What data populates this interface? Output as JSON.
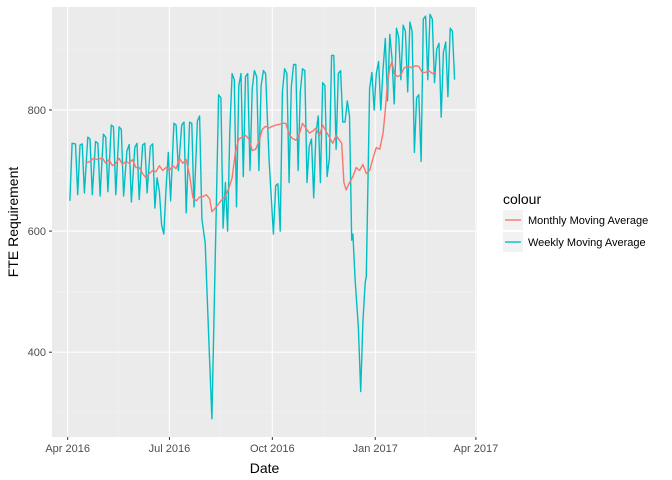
{
  "chart_data": {
    "type": "line",
    "xlabel": "Date",
    "ylabel": "FTE Requirement",
    "x_axis": {
      "type": "date",
      "range": [
        "2016-03-18",
        "2017-04-02"
      ],
      "ticks": [
        {
          "date": "2016-04-01",
          "label": "Apr 2016"
        },
        {
          "date": "2016-07-01",
          "label": "Jul 2016"
        },
        {
          "date": "2016-10-01",
          "label": "Oct 2016"
        },
        {
          "date": "2017-01-01",
          "label": "Jan 2017"
        },
        {
          "date": "2017-04-01",
          "label": "Apr 2017"
        }
      ]
    },
    "y_axis": {
      "range": [
        260,
        970
      ],
      "ticks": [
        400,
        600,
        800
      ]
    },
    "grid": true,
    "legend": {
      "title": "colour",
      "placement": "right",
      "entries": [
        "Monthly Moving Average",
        "Weekly Moving Average"
      ]
    },
    "series": [
      {
        "name": "Weekly Moving Average",
        "color": "#00bfc4",
        "points": [
          [
            "2016-04-03",
            650
          ],
          [
            "2016-04-05",
            745
          ],
          [
            "2016-04-08",
            744
          ],
          [
            "2016-04-10",
            660
          ],
          [
            "2016-04-12",
            742
          ],
          [
            "2016-04-14",
            744
          ],
          [
            "2016-04-16",
            663
          ],
          [
            "2016-04-19",
            755
          ],
          [
            "2016-04-21",
            752
          ],
          [
            "2016-04-23",
            660
          ],
          [
            "2016-04-26",
            748
          ],
          [
            "2016-04-28",
            745
          ],
          [
            "2016-04-30",
            658
          ],
          [
            "2016-05-03",
            760
          ],
          [
            "2016-05-05",
            755
          ],
          [
            "2016-05-07",
            665
          ],
          [
            "2016-05-10",
            775
          ],
          [
            "2016-05-12",
            772
          ],
          [
            "2016-05-14",
            660
          ],
          [
            "2016-05-17",
            772
          ],
          [
            "2016-05-19",
            768
          ],
          [
            "2016-05-21",
            658
          ],
          [
            "2016-05-24",
            732
          ],
          [
            "2016-05-26",
            743
          ],
          [
            "2016-05-28",
            648
          ],
          [
            "2016-05-31",
            738
          ],
          [
            "2016-06-02",
            745
          ],
          [
            "2016-06-04",
            652
          ],
          [
            "2016-06-07",
            742
          ],
          [
            "2016-06-09",
            745
          ],
          [
            "2016-06-11",
            663
          ],
          [
            "2016-06-14",
            740
          ],
          [
            "2016-06-16",
            744
          ],
          [
            "2016-06-18",
            638
          ],
          [
            "2016-06-20",
            688
          ],
          [
            "2016-06-22",
            665
          ],
          [
            "2016-06-24",
            610
          ],
          [
            "2016-06-26",
            595
          ],
          [
            "2016-06-28",
            672
          ],
          [
            "2016-06-30",
            730
          ],
          [
            "2016-07-02",
            650
          ],
          [
            "2016-07-05",
            778
          ],
          [
            "2016-07-07",
            775
          ],
          [
            "2016-07-09",
            700
          ],
          [
            "2016-07-12",
            775
          ],
          [
            "2016-07-14",
            780
          ],
          [
            "2016-07-16",
            630
          ],
          [
            "2016-07-19",
            780
          ],
          [
            "2016-07-21",
            778
          ],
          [
            "2016-07-23",
            640
          ],
          [
            "2016-07-26",
            782
          ],
          [
            "2016-07-28",
            790
          ],
          [
            "2016-07-30",
            620
          ],
          [
            "2016-08-02",
            580
          ],
          [
            "2016-08-05",
            430
          ],
          [
            "2016-08-08",
            290
          ],
          [
            "2016-08-11",
            560
          ],
          [
            "2016-08-14",
            825
          ],
          [
            "2016-08-16",
            820
          ],
          [
            "2016-08-18",
            605
          ],
          [
            "2016-08-20",
            680
          ],
          [
            "2016-08-22",
            600
          ],
          [
            "2016-08-24",
            765
          ],
          [
            "2016-08-26",
            860
          ],
          [
            "2016-08-28",
            850
          ],
          [
            "2016-08-30",
            640
          ],
          [
            "2016-09-01",
            840
          ],
          [
            "2016-09-03",
            860
          ],
          [
            "2016-09-05",
            690
          ],
          [
            "2016-09-07",
            855
          ],
          [
            "2016-09-09",
            860
          ],
          [
            "2016-09-11",
            700
          ],
          [
            "2016-09-13",
            835
          ],
          [
            "2016-09-15",
            865
          ],
          [
            "2016-09-17",
            855
          ],
          [
            "2016-09-19",
            700
          ],
          [
            "2016-09-21",
            840
          ],
          [
            "2016-09-23",
            865
          ],
          [
            "2016-09-25",
            860
          ],
          [
            "2016-09-28",
            720
          ],
          [
            "2016-10-02",
            595
          ],
          [
            "2016-10-04",
            675
          ],
          [
            "2016-10-06",
            678
          ],
          [
            "2016-10-08",
            600
          ],
          [
            "2016-10-10",
            830
          ],
          [
            "2016-10-12",
            868
          ],
          [
            "2016-10-14",
            860
          ],
          [
            "2016-10-16",
            680
          ],
          [
            "2016-10-18",
            838
          ],
          [
            "2016-10-20",
            875
          ],
          [
            "2016-10-22",
            875
          ],
          [
            "2016-10-24",
            700
          ],
          [
            "2016-10-26",
            830
          ],
          [
            "2016-10-28",
            868
          ],
          [
            "2016-10-30",
            865
          ],
          [
            "2016-11-01",
            680
          ],
          [
            "2016-11-03",
            740
          ],
          [
            "2016-11-05",
            752
          ],
          [
            "2016-11-07",
            655
          ],
          [
            "2016-11-09",
            760
          ],
          [
            "2016-11-11",
            790
          ],
          [
            "2016-11-13",
            680
          ],
          [
            "2016-11-15",
            845
          ],
          [
            "2016-11-17",
            840
          ],
          [
            "2016-11-19",
            690
          ],
          [
            "2016-11-21",
            720
          ],
          [
            "2016-11-23",
            890
          ],
          [
            "2016-11-25",
            890
          ],
          [
            "2016-11-27",
            735
          ],
          [
            "2016-11-29",
            860
          ],
          [
            "2016-12-01",
            865
          ],
          [
            "2016-12-03",
            780
          ],
          [
            "2016-12-05",
            780
          ],
          [
            "2016-12-07",
            815
          ],
          [
            "2016-12-09",
            790
          ],
          [
            "2016-12-11",
            585
          ],
          [
            "2016-12-12",
            595
          ],
          [
            "2016-12-14",
            520
          ],
          [
            "2016-12-17",
            440
          ],
          [
            "2016-12-19",
            335
          ],
          [
            "2016-12-21",
            450
          ],
          [
            "2016-12-23",
            515
          ],
          [
            "2016-12-24",
            525
          ],
          [
            "2016-12-27",
            835
          ],
          [
            "2016-12-29",
            862
          ],
          [
            "2016-12-31",
            800
          ],
          [
            "2017-01-02",
            860
          ],
          [
            "2017-01-04",
            880
          ],
          [
            "2017-01-06",
            800
          ],
          [
            "2017-01-08",
            868
          ],
          [
            "2017-01-10",
            918
          ],
          [
            "2017-01-12",
            815
          ],
          [
            "2017-01-14",
            925
          ],
          [
            "2017-01-16",
            885
          ],
          [
            "2017-01-18",
            810
          ],
          [
            "2017-01-20",
            935
          ],
          [
            "2017-01-22",
            920
          ],
          [
            "2017-01-24",
            850
          ],
          [
            "2017-01-26",
            940
          ],
          [
            "2017-01-28",
            930
          ],
          [
            "2017-01-30",
            830
          ],
          [
            "2017-02-01",
            945
          ],
          [
            "2017-02-03",
            930
          ],
          [
            "2017-02-05",
            730
          ],
          [
            "2017-02-07",
            820
          ],
          [
            "2017-02-09",
            825
          ],
          [
            "2017-02-11",
            715
          ],
          [
            "2017-02-13",
            950
          ],
          [
            "2017-02-15",
            955
          ],
          [
            "2017-02-17",
            850
          ],
          [
            "2017-02-19",
            958
          ],
          [
            "2017-02-21",
            950
          ],
          [
            "2017-02-23",
            845
          ],
          [
            "2017-02-25",
            900
          ],
          [
            "2017-02-27",
            910
          ],
          [
            "2017-03-01",
            788
          ],
          [
            "2017-03-03",
            895
          ],
          [
            "2017-03-05",
            912
          ],
          [
            "2017-03-07",
            822
          ],
          [
            "2017-03-09",
            935
          ],
          [
            "2017-03-11",
            930
          ],
          [
            "2017-03-13",
            850
          ]
        ]
      },
      {
        "name": "Monthly Moving Average",
        "color": "#f8766d",
        "points": [
          [
            "2016-04-17",
            712
          ],
          [
            "2016-04-21",
            715
          ],
          [
            "2016-04-24",
            720
          ],
          [
            "2016-04-28",
            718
          ],
          [
            "2016-05-02",
            721
          ],
          [
            "2016-05-05",
            712
          ],
          [
            "2016-05-08",
            718
          ],
          [
            "2016-05-11",
            708
          ],
          [
            "2016-05-14",
            712
          ],
          [
            "2016-05-17",
            720
          ],
          [
            "2016-05-20",
            710
          ],
          [
            "2016-05-23",
            715
          ],
          [
            "2016-05-26",
            712
          ],
          [
            "2016-05-29",
            718
          ],
          [
            "2016-06-01",
            705
          ],
          [
            "2016-06-04",
            705
          ],
          [
            "2016-06-07",
            695
          ],
          [
            "2016-06-10",
            688
          ],
          [
            "2016-06-13",
            695
          ],
          [
            "2016-06-16",
            700
          ],
          [
            "2016-06-19",
            698
          ],
          [
            "2016-06-22",
            708
          ],
          [
            "2016-06-25",
            700
          ],
          [
            "2016-06-28",
            705
          ],
          [
            "2016-07-01",
            700
          ],
          [
            "2016-07-04",
            708
          ],
          [
            "2016-07-07",
            703
          ],
          [
            "2016-07-10",
            720
          ],
          [
            "2016-07-13",
            712
          ],
          [
            "2016-07-16",
            718
          ],
          [
            "2016-07-19",
            692
          ],
          [
            "2016-07-22",
            655
          ],
          [
            "2016-07-25",
            650
          ],
          [
            "2016-07-28",
            656
          ],
          [
            "2016-07-31",
            657
          ],
          [
            "2016-08-03",
            660
          ],
          [
            "2016-08-06",
            653
          ],
          [
            "2016-08-08",
            632
          ],
          [
            "2016-08-11",
            638
          ],
          [
            "2016-08-14",
            645
          ],
          [
            "2016-08-17",
            652
          ],
          [
            "2016-08-20",
            658
          ],
          [
            "2016-08-23",
            670
          ],
          [
            "2016-08-26",
            688
          ],
          [
            "2016-08-29",
            730
          ],
          [
            "2016-09-01",
            752
          ],
          [
            "2016-09-04",
            755
          ],
          [
            "2016-09-07",
            758
          ],
          [
            "2016-09-10",
            752
          ],
          [
            "2016-09-13",
            733
          ],
          [
            "2016-09-16",
            735
          ],
          [
            "2016-09-19",
            748
          ],
          [
            "2016-09-22",
            768
          ],
          [
            "2016-09-25",
            773
          ],
          [
            "2016-09-28",
            770
          ],
          [
            "2016-10-01",
            773
          ],
          [
            "2016-10-04",
            775
          ],
          [
            "2016-10-07",
            776
          ],
          [
            "2016-10-10",
            778
          ],
          [
            "2016-10-13",
            778
          ],
          [
            "2016-10-16",
            760
          ],
          [
            "2016-10-19",
            753
          ],
          [
            "2016-10-22",
            750
          ],
          [
            "2016-10-25",
            760
          ],
          [
            "2016-10-28",
            778
          ],
          [
            "2016-10-31",
            770
          ],
          [
            "2016-11-03",
            762
          ],
          [
            "2016-11-06",
            765
          ],
          [
            "2016-11-09",
            770
          ],
          [
            "2016-11-12",
            757
          ],
          [
            "2016-11-15",
            775
          ],
          [
            "2016-11-18",
            765
          ],
          [
            "2016-11-21",
            755
          ],
          [
            "2016-11-24",
            745
          ],
          [
            "2016-11-27",
            758
          ],
          [
            "2016-11-30",
            750
          ],
          [
            "2016-12-02",
            745
          ],
          [
            "2016-12-04",
            680
          ],
          [
            "2016-12-06",
            668
          ],
          [
            "2016-12-09",
            680
          ],
          [
            "2016-12-12",
            690
          ],
          [
            "2016-12-15",
            705
          ],
          [
            "2016-12-18",
            700
          ],
          [
            "2016-12-21",
            710
          ],
          [
            "2016-12-24",
            695
          ],
          [
            "2016-12-27",
            700
          ],
          [
            "2016-12-30",
            720
          ],
          [
            "2017-01-02",
            738
          ],
          [
            "2017-01-05",
            735
          ],
          [
            "2017-01-08",
            762
          ],
          [
            "2017-01-10",
            800
          ],
          [
            "2017-01-12",
            845
          ],
          [
            "2017-01-14",
            870
          ],
          [
            "2017-01-16",
            880
          ],
          [
            "2017-01-18",
            860
          ],
          [
            "2017-01-21",
            855
          ],
          [
            "2017-01-24",
            858
          ],
          [
            "2017-01-27",
            870
          ],
          [
            "2017-01-30",
            872
          ],
          [
            "2017-02-03",
            870
          ],
          [
            "2017-02-06",
            873
          ],
          [
            "2017-02-09",
            872
          ],
          [
            "2017-02-12",
            862
          ],
          [
            "2017-02-15",
            862
          ],
          [
            "2017-02-18",
            865
          ],
          [
            "2017-02-21",
            860
          ],
          [
            "2017-02-24",
            863
          ]
        ]
      }
    ]
  }
}
